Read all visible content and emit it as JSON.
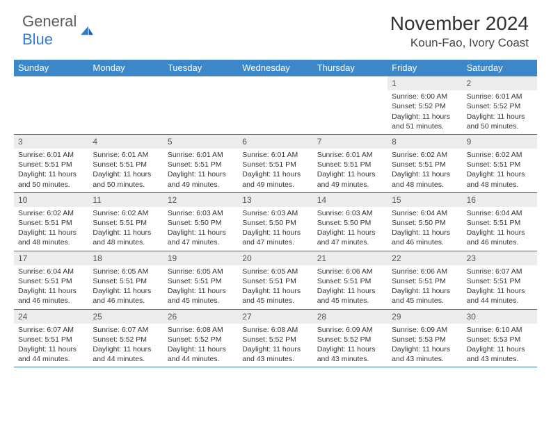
{
  "brand": {
    "word1": "General",
    "word2": "Blue"
  },
  "title": "November 2024",
  "location": "Koun-Fao, Ivory Coast",
  "colors": {
    "header_bg": "#3b87c8",
    "header_text": "#ffffff",
    "rule": "#2e6aa3",
    "daynum_bg": "#ececec",
    "brand_blue": "#2e7cd1",
    "brand_gray": "#5a5a5a"
  },
  "day_names": [
    "Sunday",
    "Monday",
    "Tuesday",
    "Wednesday",
    "Thursday",
    "Friday",
    "Saturday"
  ],
  "weeks": [
    [
      {},
      {},
      {},
      {},
      {},
      {
        "n": "1",
        "sr": "Sunrise: 6:00 AM",
        "ss": "Sunset: 5:52 PM",
        "d1": "Daylight: 11 hours",
        "d2": "and 51 minutes."
      },
      {
        "n": "2",
        "sr": "Sunrise: 6:01 AM",
        "ss": "Sunset: 5:52 PM",
        "d1": "Daylight: 11 hours",
        "d2": "and 50 minutes."
      }
    ],
    [
      {
        "n": "3",
        "sr": "Sunrise: 6:01 AM",
        "ss": "Sunset: 5:51 PM",
        "d1": "Daylight: 11 hours",
        "d2": "and 50 minutes."
      },
      {
        "n": "4",
        "sr": "Sunrise: 6:01 AM",
        "ss": "Sunset: 5:51 PM",
        "d1": "Daylight: 11 hours",
        "d2": "and 50 minutes."
      },
      {
        "n": "5",
        "sr": "Sunrise: 6:01 AM",
        "ss": "Sunset: 5:51 PM",
        "d1": "Daylight: 11 hours",
        "d2": "and 49 minutes."
      },
      {
        "n": "6",
        "sr": "Sunrise: 6:01 AM",
        "ss": "Sunset: 5:51 PM",
        "d1": "Daylight: 11 hours",
        "d2": "and 49 minutes."
      },
      {
        "n": "7",
        "sr": "Sunrise: 6:01 AM",
        "ss": "Sunset: 5:51 PM",
        "d1": "Daylight: 11 hours",
        "d2": "and 49 minutes."
      },
      {
        "n": "8",
        "sr": "Sunrise: 6:02 AM",
        "ss": "Sunset: 5:51 PM",
        "d1": "Daylight: 11 hours",
        "d2": "and 48 minutes."
      },
      {
        "n": "9",
        "sr": "Sunrise: 6:02 AM",
        "ss": "Sunset: 5:51 PM",
        "d1": "Daylight: 11 hours",
        "d2": "and 48 minutes."
      }
    ],
    [
      {
        "n": "10",
        "sr": "Sunrise: 6:02 AM",
        "ss": "Sunset: 5:51 PM",
        "d1": "Daylight: 11 hours",
        "d2": "and 48 minutes."
      },
      {
        "n": "11",
        "sr": "Sunrise: 6:02 AM",
        "ss": "Sunset: 5:51 PM",
        "d1": "Daylight: 11 hours",
        "d2": "and 48 minutes."
      },
      {
        "n": "12",
        "sr": "Sunrise: 6:03 AM",
        "ss": "Sunset: 5:50 PM",
        "d1": "Daylight: 11 hours",
        "d2": "and 47 minutes."
      },
      {
        "n": "13",
        "sr": "Sunrise: 6:03 AM",
        "ss": "Sunset: 5:50 PM",
        "d1": "Daylight: 11 hours",
        "d2": "and 47 minutes."
      },
      {
        "n": "14",
        "sr": "Sunrise: 6:03 AM",
        "ss": "Sunset: 5:50 PM",
        "d1": "Daylight: 11 hours",
        "d2": "and 47 minutes."
      },
      {
        "n": "15",
        "sr": "Sunrise: 6:04 AM",
        "ss": "Sunset: 5:50 PM",
        "d1": "Daylight: 11 hours",
        "d2": "and 46 minutes."
      },
      {
        "n": "16",
        "sr": "Sunrise: 6:04 AM",
        "ss": "Sunset: 5:51 PM",
        "d1": "Daylight: 11 hours",
        "d2": "and 46 minutes."
      }
    ],
    [
      {
        "n": "17",
        "sr": "Sunrise: 6:04 AM",
        "ss": "Sunset: 5:51 PM",
        "d1": "Daylight: 11 hours",
        "d2": "and 46 minutes."
      },
      {
        "n": "18",
        "sr": "Sunrise: 6:05 AM",
        "ss": "Sunset: 5:51 PM",
        "d1": "Daylight: 11 hours",
        "d2": "and 46 minutes."
      },
      {
        "n": "19",
        "sr": "Sunrise: 6:05 AM",
        "ss": "Sunset: 5:51 PM",
        "d1": "Daylight: 11 hours",
        "d2": "and 45 minutes."
      },
      {
        "n": "20",
        "sr": "Sunrise: 6:05 AM",
        "ss": "Sunset: 5:51 PM",
        "d1": "Daylight: 11 hours",
        "d2": "and 45 minutes."
      },
      {
        "n": "21",
        "sr": "Sunrise: 6:06 AM",
        "ss": "Sunset: 5:51 PM",
        "d1": "Daylight: 11 hours",
        "d2": "and 45 minutes."
      },
      {
        "n": "22",
        "sr": "Sunrise: 6:06 AM",
        "ss": "Sunset: 5:51 PM",
        "d1": "Daylight: 11 hours",
        "d2": "and 45 minutes."
      },
      {
        "n": "23",
        "sr": "Sunrise: 6:07 AM",
        "ss": "Sunset: 5:51 PM",
        "d1": "Daylight: 11 hours",
        "d2": "and 44 minutes."
      }
    ],
    [
      {
        "n": "24",
        "sr": "Sunrise: 6:07 AM",
        "ss": "Sunset: 5:51 PM",
        "d1": "Daylight: 11 hours",
        "d2": "and 44 minutes."
      },
      {
        "n": "25",
        "sr": "Sunrise: 6:07 AM",
        "ss": "Sunset: 5:52 PM",
        "d1": "Daylight: 11 hours",
        "d2": "and 44 minutes."
      },
      {
        "n": "26",
        "sr": "Sunrise: 6:08 AM",
        "ss": "Sunset: 5:52 PM",
        "d1": "Daylight: 11 hours",
        "d2": "and 44 minutes."
      },
      {
        "n": "27",
        "sr": "Sunrise: 6:08 AM",
        "ss": "Sunset: 5:52 PM",
        "d1": "Daylight: 11 hours",
        "d2": "and 43 minutes."
      },
      {
        "n": "28",
        "sr": "Sunrise: 6:09 AM",
        "ss": "Sunset: 5:52 PM",
        "d1": "Daylight: 11 hours",
        "d2": "and 43 minutes."
      },
      {
        "n": "29",
        "sr": "Sunrise: 6:09 AM",
        "ss": "Sunset: 5:53 PM",
        "d1": "Daylight: 11 hours",
        "d2": "and 43 minutes."
      },
      {
        "n": "30",
        "sr": "Sunrise: 6:10 AM",
        "ss": "Sunset: 5:53 PM",
        "d1": "Daylight: 11 hours",
        "d2": "and 43 minutes."
      }
    ]
  ]
}
